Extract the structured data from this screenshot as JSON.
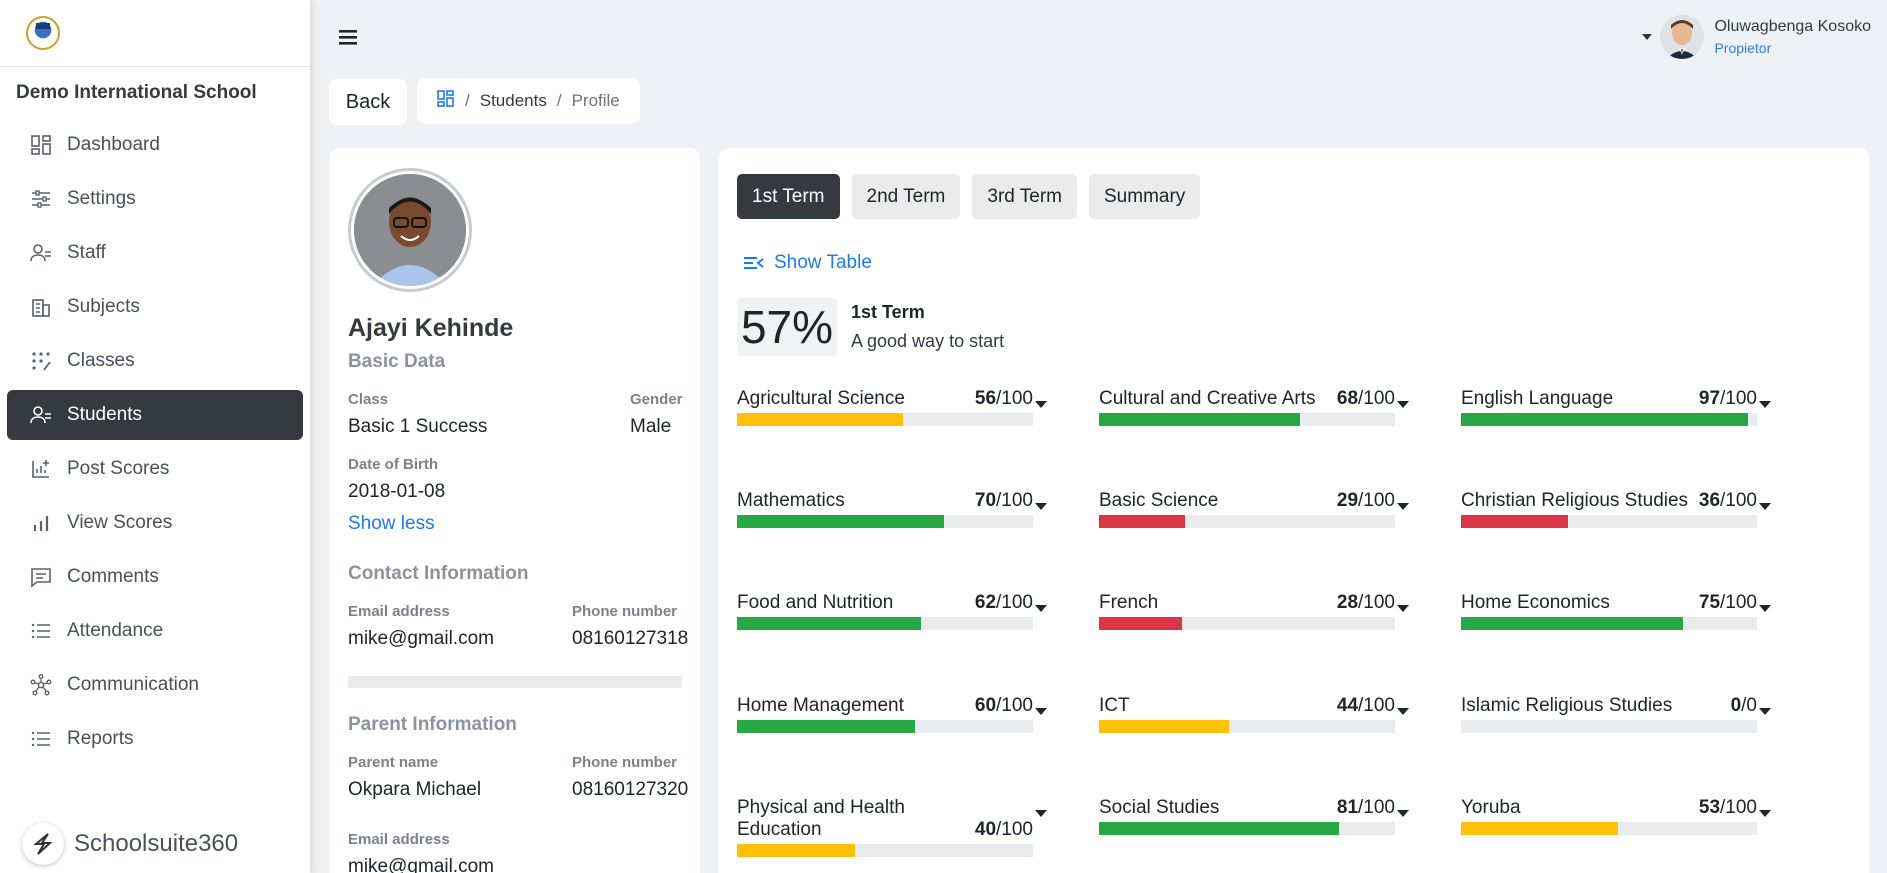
{
  "sidebar": {
    "school_name": "Demo International School",
    "items": [
      {
        "label": "Dashboard",
        "icon": "dashboard-icon"
      },
      {
        "label": "Settings",
        "icon": "sliders-icon"
      },
      {
        "label": "Staff",
        "icon": "staff-icon"
      },
      {
        "label": "Subjects",
        "icon": "building-icon"
      },
      {
        "label": "Classes",
        "icon": "dots-icon"
      },
      {
        "label": "Students",
        "icon": "students-icon"
      },
      {
        "label": "Post Scores",
        "icon": "post-scores-icon"
      },
      {
        "label": "View Scores",
        "icon": "bar-chart-icon"
      },
      {
        "label": "Comments",
        "icon": "comment-icon"
      },
      {
        "label": "Attendance",
        "icon": "list-icon"
      },
      {
        "label": "Communication",
        "icon": "network-icon"
      },
      {
        "label": "Reports",
        "icon": "list-icon"
      }
    ],
    "active_index": 5,
    "brand": "Schoolsuite360"
  },
  "header": {
    "user_name": "Oluwagbenga Kosoko",
    "user_role": "Propietor"
  },
  "back_label": "Back",
  "breadcrumb": {
    "students": "Students",
    "profile": "Profile"
  },
  "profile": {
    "name": "Ajayi Kehinde",
    "basic_title": "Basic Data",
    "class_label": "Class",
    "class_value": "Basic 1 Success",
    "gender_label": "Gender",
    "gender_value": "Male",
    "dob_label": "Date of Birth",
    "dob_value": "2018-01-08",
    "show_less": "Show less",
    "contact_title": "Contact Information",
    "email_label": "Email address",
    "email_value": "mike@gmail.com",
    "phone_label": "Phone number",
    "phone_value": "08160127318",
    "parent_title": "Parent Information",
    "parent_name_label": "Parent name",
    "parent_name_value": "Okpara Michael",
    "parent_phone_label": "Phone number",
    "parent_phone_value": "08160127320",
    "parent_email_label": "Email address",
    "parent_email_value": "mike@gmail.com"
  },
  "tabs": [
    "1st Term",
    "2nd Term",
    "3rd Term",
    "Summary"
  ],
  "active_tab": 0,
  "show_table": "Show Table",
  "summary": {
    "percent": "57%",
    "term": "1st Term",
    "remark": "A good way to start"
  },
  "colors": {
    "green": "#28a745",
    "yellow": "#ffc107",
    "red": "#dc3545"
  },
  "subjects": [
    {
      "name": "Agricultural Science",
      "score": 56,
      "max": 100,
      "color": "#ffc107"
    },
    {
      "name": "Cultural and Creative Arts",
      "score": 68,
      "max": 100,
      "color": "#28a745"
    },
    {
      "name": "English Language",
      "score": 97,
      "max": 100,
      "color": "#28a745"
    },
    {
      "name": "Mathematics",
      "score": 70,
      "max": 100,
      "color": "#28a745"
    },
    {
      "name": "Basic Science",
      "score": 29,
      "max": 100,
      "color": "#dc3545"
    },
    {
      "name": "Christian Religious Studies",
      "score": 36,
      "max": 100,
      "color": "#dc3545"
    },
    {
      "name": "Food and Nutrition",
      "score": 62,
      "max": 100,
      "color": "#28a745"
    },
    {
      "name": "French",
      "score": 28,
      "max": 100,
      "color": "#dc3545"
    },
    {
      "name": "Home Economics",
      "score": 75,
      "max": 100,
      "color": "#28a745"
    },
    {
      "name": "Home Management",
      "score": 60,
      "max": 100,
      "color": "#28a745"
    },
    {
      "name": "ICT",
      "score": 44,
      "max": 100,
      "color": "#ffc107"
    },
    {
      "name": "Islamic Religious Studies",
      "score": 0,
      "max": 0,
      "color": "#28a745"
    },
    {
      "name": "Physical and Health Education",
      "score": 40,
      "max": 100,
      "color": "#ffc107"
    },
    {
      "name": "Social Studies",
      "score": 81,
      "max": 100,
      "color": "#28a745"
    },
    {
      "name": "Yoruba",
      "score": 53,
      "max": 100,
      "color": "#ffc107"
    }
  ]
}
